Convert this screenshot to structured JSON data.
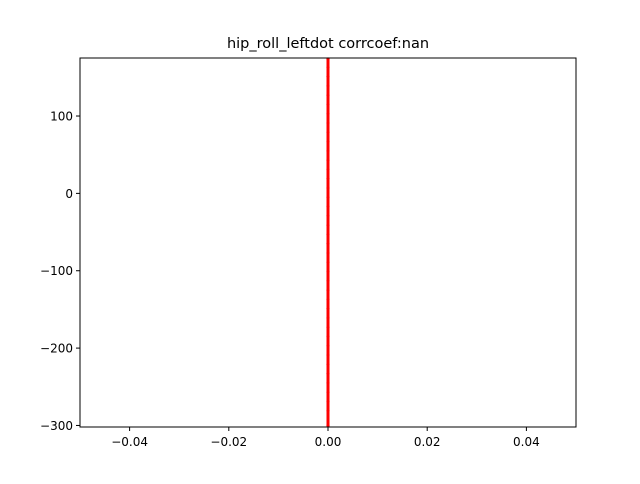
{
  "chart_data": {
    "type": "scatter",
    "title": "hip_roll_leftdot corrcoef:nan",
    "xlabel": "",
    "ylabel": "",
    "xlim": [
      -0.05,
      0.05
    ],
    "ylim": [
      -302,
      175
    ],
    "x_ticks": [
      -0.04,
      -0.02,
      0.0,
      0.02,
      0.04
    ],
    "x_tick_labels": [
      "−0.04",
      "−0.02",
      "0.00",
      "0.02",
      "0.04"
    ],
    "y_ticks": [
      100,
      0,
      -100,
      -200,
      -300
    ],
    "y_tick_labels": [
      "100",
      "0",
      "−100",
      "−200",
      "−300"
    ],
    "grid": false,
    "series": [
      {
        "color": "#ff0000",
        "marker": "dot",
        "x": [
          0,
          0,
          0,
          0,
          0,
          0,
          0,
          0,
          0,
          0,
          0,
          0,
          0,
          0,
          0,
          0,
          0,
          0,
          0,
          0,
          0,
          0,
          0,
          0,
          0,
          0,
          0,
          0,
          0,
          0,
          0,
          0,
          0,
          0,
          0,
          0,
          0,
          0,
          0,
          0
        ],
        "y": [
          175,
          163,
          151,
          139,
          127,
          115,
          103,
          91,
          79,
          67,
          55,
          43,
          31,
          19,
          7,
          -5,
          -17,
          -29,
          -41,
          -53,
          -65,
          -77,
          -89,
          -101,
          -113,
          -125,
          -137,
          -149,
          -161,
          -173,
          -185,
          -197,
          -209,
          -221,
          -233,
          -245,
          -257,
          -269,
          -281,
          -300
        ]
      }
    ]
  },
  "colors": {
    "series": "#ff0000",
    "axes": "#000000",
    "background": "#ffffff"
  }
}
